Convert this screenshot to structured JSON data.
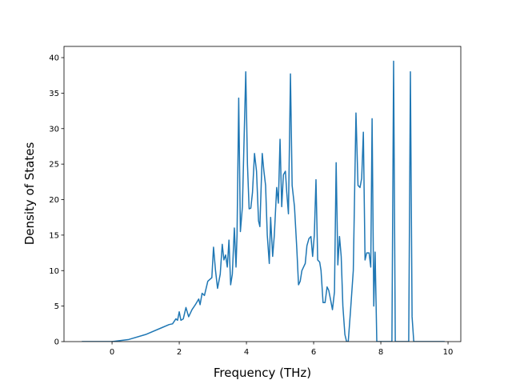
{
  "chart_data": {
    "type": "line",
    "xlabel": "Frequency (THz)",
    "ylabel": "Density of States",
    "color": "#1f77b4",
    "x": [
      -0.9,
      0,
      0.5,
      1,
      1.5,
      1.7,
      1.8,
      1.9,
      1.95,
      2.0,
      2.05,
      2.12,
      2.2,
      2.28,
      2.38,
      2.48,
      2.58,
      2.62,
      2.68,
      2.75,
      2.85,
      2.92,
      2.97,
      3.02,
      3.08,
      3.14,
      3.22,
      3.28,
      3.33,
      3.38,
      3.43,
      3.48,
      3.53,
      3.58,
      3.64,
      3.69,
      3.72,
      3.77,
      3.82,
      3.88,
      3.98,
      4.03,
      4.08,
      4.13,
      4.18,
      4.24,
      4.3,
      4.36,
      4.4,
      4.47,
      4.52,
      4.57,
      4.62,
      4.68,
      4.72,
      4.78,
      4.83,
      4.9,
      4.95,
      5.0,
      5.05,
      5.1,
      5.16,
      5.2,
      5.25,
      5.31,
      5.36,
      5.43,
      5.5,
      5.55,
      5.6,
      5.65,
      5.75,
      5.8,
      5.86,
      5.92,
      5.97,
      6.02,
      6.07,
      6.12,
      6.18,
      6.22,
      6.28,
      6.34,
      6.4,
      6.45,
      6.5,
      6.56,
      6.62,
      6.67,
      6.72,
      6.77,
      6.82,
      6.87,
      6.93,
      6.98,
      7.03,
      7.1,
      7.18,
      7.26,
      7.32,
      7.38,
      7.43,
      7.48,
      7.53,
      7.58,
      7.65,
      7.7,
      7.74,
      7.79,
      7.83,
      7.88,
      8.33,
      8.38,
      8.43,
      8.83,
      8.88,
      8.93,
      8.98,
      9.9
    ],
    "values": [
      0,
      0,
      0.3,
      1,
      2,
      2.4,
      2.5,
      3.2,
      3.0,
      4.2,
      3.0,
      3.2,
      4.8,
      3.5,
      4.5,
      5.2,
      6.0,
      5.2,
      6.8,
      6.5,
      8.5,
      8.8,
      9.0,
      13.3,
      10,
      7.5,
      9.5,
      13.7,
      11.5,
      12.2,
      10.5,
      14.3,
      8.0,
      9.5,
      16,
      10.5,
      15,
      34.3,
      15.5,
      19,
      38,
      25,
      18.7,
      18.8,
      21,
      26.5,
      24,
      17,
      16.2,
      26.5,
      24,
      22,
      15,
      11,
      17.5,
      12,
      15,
      21.7,
      19.5,
      28.5,
      19,
      23.5,
      24,
      21,
      18,
      37.7,
      22,
      19,
      13,
      8,
      8.5,
      10,
      11,
      13.5,
      14.5,
      14.8,
      12,
      15,
      22.8,
      11.5,
      11.2,
      10,
      5.5,
      5.5,
      7.7,
      7.2,
      6,
      4.5,
      7,
      25.2,
      10.8,
      14.8,
      12,
      5,
      1,
      0,
      0,
      4.5,
      10,
      32.2,
      22,
      21.7,
      23,
      29.5,
      11.5,
      12.5,
      12.5,
      10.5,
      31.4,
      5,
      12.6,
      0,
      0,
      39.5,
      0,
      0,
      38,
      3.5,
      0,
      0
    ],
    "xlim": [
      -1.43,
      10.38
    ],
    "ylim": [
      0,
      41.58
    ],
    "xticks": [
      0,
      2,
      4,
      6,
      8,
      10
    ],
    "yticks": [
      0,
      5,
      10,
      15,
      20,
      25,
      30,
      35,
      40
    ]
  }
}
